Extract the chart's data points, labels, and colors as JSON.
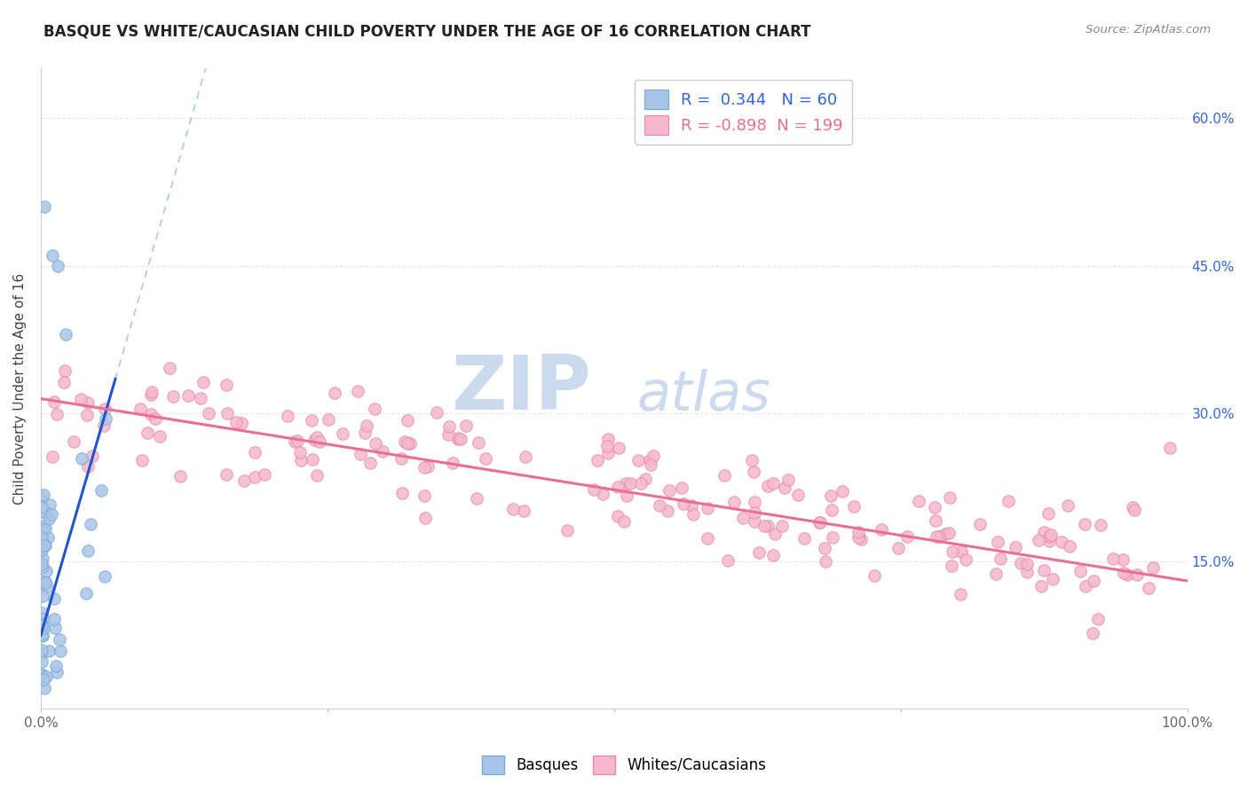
{
  "title": "BASQUE VS WHITE/CAUCASIAN CHILD POVERTY UNDER THE AGE OF 16 CORRELATION CHART",
  "source": "Source: ZipAtlas.com",
  "ylabel": "Child Poverty Under the Age of 16",
  "xlim": [
    0,
    1.0
  ],
  "ylim": [
    0,
    0.65
  ],
  "R_basque": 0.344,
  "N_basque": 60,
  "R_white": -0.898,
  "N_white": 199,
  "basque_color": "#a8c4e8",
  "basque_edge": "#7aaad4",
  "white_color": "#f5b8cc",
  "white_edge": "#e888a8",
  "trend_blue_color": "#2255cc",
  "trend_pink_color": "#e87090",
  "trend_dashed_color": "#aac8e8",
  "legend_blue_text_color": "#3366dd",
  "legend_pink_text_color": "#e87090",
  "watermark_zip_color": "#ccdaee",
  "watermark_atlas_color": "#ccdaee",
  "background_color": "#ffffff",
  "grid_color": "#dde8f0",
  "title_color": "#222222",
  "source_color": "#888888",
  "right_axis_color": "#3366dd",
  "ylabel_color": "#444444"
}
